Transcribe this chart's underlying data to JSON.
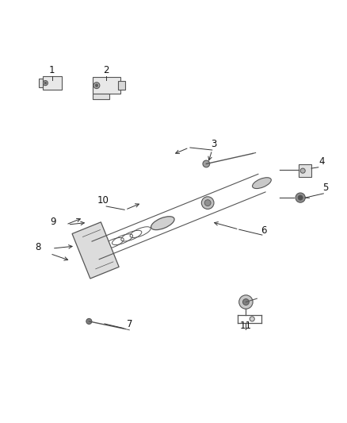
{
  "background_color": "#ffffff",
  "fig_width": 4.38,
  "fig_height": 5.33,
  "dpi": 100,
  "line_color": "#333333",
  "part_line_color": "#555555",
  "label_fontsize": 8.5
}
